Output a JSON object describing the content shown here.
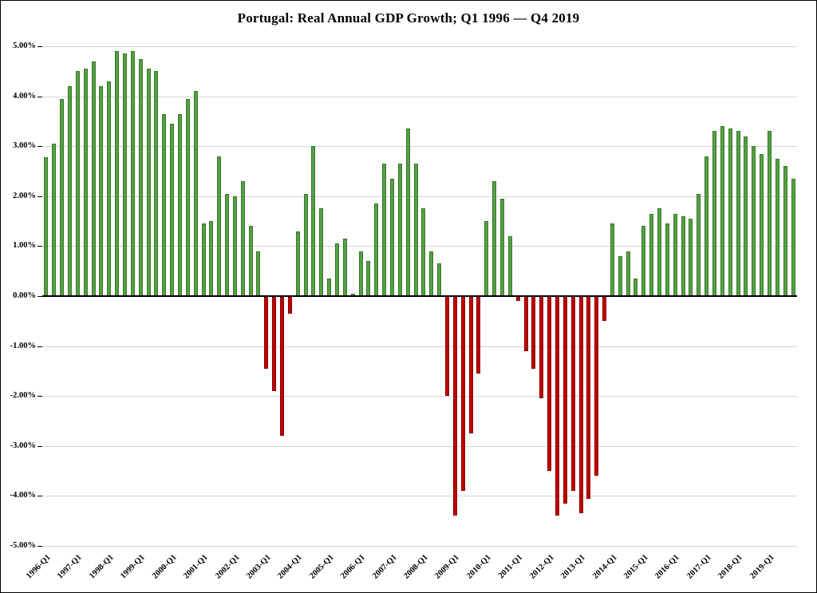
{
  "chart_data": {
    "type": "bar",
    "title": "Portugal: Real Annual GDP Growth; Q1 1996 — Q4 2019",
    "xlabel": "",
    "ylabel": "",
    "ylim": [
      -5,
      5
    ],
    "ytick_step": 1,
    "grid": true,
    "legend": "none",
    "positive_color": "#54A146",
    "positive_border": "#3A7527",
    "negative_color": "#C00000",
    "negative_border": "#8B0000",
    "zero_line_color": "#000000",
    "gridline_color": "#d4d4d4",
    "ytick_labels": [
      "5.00%",
      "4.00%",
      "3.00%",
      "2.00%",
      "1.00%",
      "0.00%",
      "-1.00%",
      "-2.00%",
      "-3.00%",
      "-4.00%",
      "-5.00%"
    ],
    "x_tick_interval": 4,
    "x_tick_labels": [
      "1996-Q1",
      "1997-Q1",
      "1998-Q1",
      "1999-Q1",
      "2000-Q1",
      "2001-Q1",
      "2002-Q1",
      "2003-Q1",
      "2004-Q1",
      "2005-Q1",
      "2006-Q1",
      "2007-Q1",
      "2008-Q1",
      "2009-Q1",
      "2010-Q1",
      "2011-Q1",
      "2012-Q1",
      "2013-Q1",
      "2014-Q1",
      "2015-Q1",
      "2016-Q1",
      "2017-Q1",
      "2018-Q1",
      "2019-Q1"
    ],
    "categories": [
      "1996-Q1",
      "1996-Q2",
      "1996-Q3",
      "1996-Q4",
      "1997-Q1",
      "1997-Q2",
      "1997-Q3",
      "1997-Q4",
      "1998-Q1",
      "1998-Q2",
      "1998-Q3",
      "1998-Q4",
      "1999-Q1",
      "1999-Q2",
      "1999-Q3",
      "1999-Q4",
      "2000-Q1",
      "2000-Q2",
      "2000-Q3",
      "2000-Q4",
      "2001-Q1",
      "2001-Q2",
      "2001-Q3",
      "2001-Q4",
      "2002-Q1",
      "2002-Q2",
      "2002-Q3",
      "2002-Q4",
      "2003-Q1",
      "2003-Q2",
      "2003-Q3",
      "2003-Q4",
      "2004-Q1",
      "2004-Q2",
      "2004-Q3",
      "2004-Q4",
      "2005-Q1",
      "2005-Q2",
      "2005-Q3",
      "2005-Q4",
      "2006-Q1",
      "2006-Q2",
      "2006-Q3",
      "2006-Q4",
      "2007-Q1",
      "2007-Q2",
      "2007-Q3",
      "2007-Q4",
      "2008-Q1",
      "2008-Q2",
      "2008-Q3",
      "2008-Q4",
      "2009-Q1",
      "2009-Q2",
      "2009-Q3",
      "2009-Q4",
      "2010-Q1",
      "2010-Q2",
      "2010-Q3",
      "2010-Q4",
      "2011-Q1",
      "2011-Q2",
      "2011-Q3",
      "2011-Q4",
      "2012-Q1",
      "2012-Q2",
      "2012-Q3",
      "2012-Q4",
      "2013-Q1",
      "2013-Q2",
      "2013-Q3",
      "2013-Q4",
      "2014-Q1",
      "2014-Q2",
      "2014-Q3",
      "2014-Q4",
      "2015-Q1",
      "2015-Q2",
      "2015-Q3",
      "2015-Q4",
      "2016-Q1",
      "2016-Q2",
      "2016-Q3",
      "2016-Q4",
      "2017-Q1",
      "2017-Q2",
      "2017-Q3",
      "2017-Q4",
      "2018-Q1",
      "2018-Q2",
      "2018-Q3",
      "2018-Q4",
      "2019-Q1",
      "2019-Q2",
      "2019-Q3",
      "2019-Q4"
    ],
    "values": [
      2.78,
      3.05,
      3.95,
      4.2,
      4.5,
      4.55,
      4.7,
      4.2,
      4.3,
      4.9,
      4.85,
      4.9,
      4.75,
      4.55,
      4.5,
      3.65,
      3.45,
      3.65,
      3.95,
      4.1,
      1.45,
      1.5,
      2.8,
      2.05,
      2.0,
      2.3,
      1.4,
      0.9,
      -1.45,
      -1.9,
      -2.8,
      -0.35,
      1.3,
      2.05,
      3.0,
      1.75,
      0.35,
      1.05,
      1.15,
      0.05,
      0.9,
      0.7,
      1.85,
      2.65,
      2.35,
      2.65,
      3.35,
      2.65,
      1.75,
      0.9,
      0.65,
      -2.0,
      -4.4,
      -3.9,
      -2.75,
      -1.55,
      1.5,
      2.3,
      1.95,
      1.2,
      -0.1,
      -1.1,
      -1.45,
      -2.05,
      -3.5,
      -4.4,
      -4.15,
      -3.9,
      -4.35,
      -4.05,
      -3.6,
      -0.5,
      1.45,
      0.8,
      0.9,
      0.35,
      1.4,
      1.65,
      1.75,
      1.45,
      1.65,
      1.6,
      1.55,
      2.05,
      2.8,
      3.3,
      3.4,
      3.35,
      3.3,
      3.2,
      3.0,
      2.85,
      3.3,
      2.75,
      2.6,
      2.35
    ]
  }
}
